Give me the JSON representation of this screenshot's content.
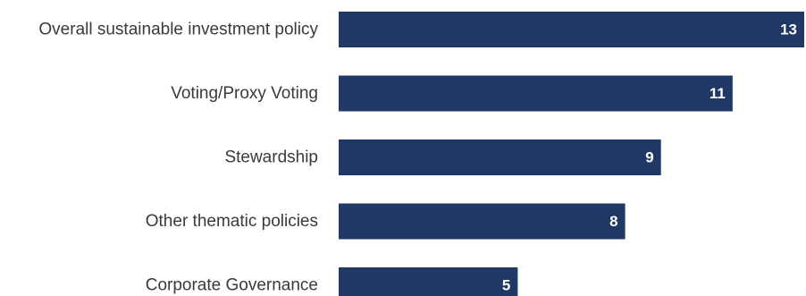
{
  "chart_data": {
    "type": "bar",
    "orientation": "horizontal",
    "categories": [
      "Overall sustainable investment policy",
      "Voting/Proxy Voting",
      "Stewardship",
      "Other thematic policies",
      "Corporate Governance"
    ],
    "values": [
      13,
      11,
      9,
      8,
      5
    ],
    "data_labels": [
      "13",
      "11",
      "9",
      "8",
      "5"
    ],
    "bar_color": "#1f3864",
    "label_color": "#3a3a3a",
    "value_label_color": "#ffffff",
    "xlim": [
      0,
      13
    ],
    "grid": false,
    "legend": "none",
    "title": "",
    "xlabel": "",
    "ylabel": ""
  }
}
